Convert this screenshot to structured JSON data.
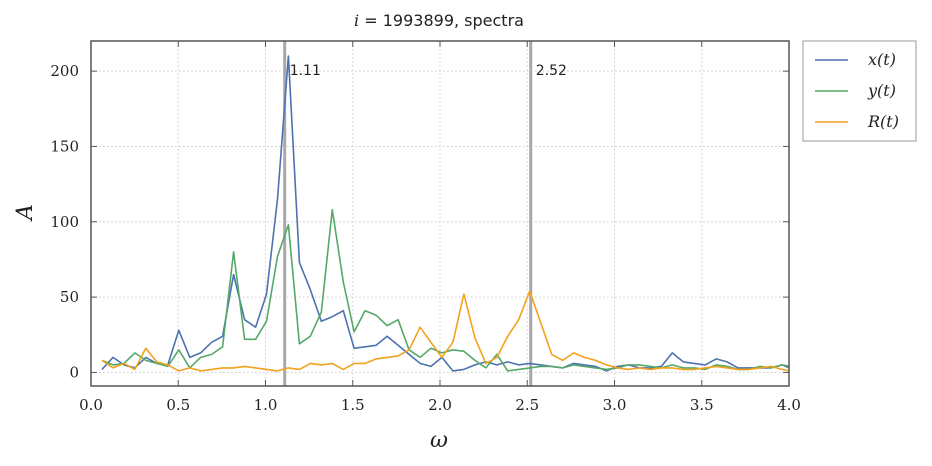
{
  "chart_data": {
    "type": "line",
    "title_var": "i",
    "title_rest": " = 1993899, spectra",
    "xlabel": "ω",
    "ylabel": "A",
    "xlim": [
      0.0,
      4.0
    ],
    "ylim": [
      -9,
      220
    ],
    "xticks": [
      0.0,
      0.5,
      1.0,
      1.5,
      2.0,
      2.5,
      3.0,
      3.5,
      4.0
    ],
    "xtick_labels": [
      "0.0",
      "0.5",
      "1.0",
      "1.5",
      "2.0",
      "2.5",
      "3.0",
      "3.5",
      "4.0"
    ],
    "yticks": [
      0,
      50,
      100,
      150,
      200
    ],
    "ytick_labels": [
      "0",
      "50",
      "100",
      "150",
      "200"
    ],
    "grid": true,
    "legend_position": "outside-top-right",
    "vlines": [
      {
        "x": 1.11,
        "label": "1.11"
      },
      {
        "x": 2.52,
        "label": "2.52"
      }
    ],
    "x": [
      0.063,
      0.126,
      0.189,
      0.251,
      0.314,
      0.377,
      0.44,
      0.503,
      0.566,
      0.628,
      0.691,
      0.754,
      0.817,
      0.88,
      0.943,
      1.006,
      1.069,
      1.131,
      1.194,
      1.257,
      1.32,
      1.383,
      1.446,
      1.508,
      1.571,
      1.634,
      1.697,
      1.76,
      1.823,
      1.886,
      1.948,
      2.011,
      2.074,
      2.137,
      2.2,
      2.263,
      2.326,
      2.388,
      2.451,
      2.514,
      2.577,
      2.64,
      2.703,
      2.766,
      2.828,
      2.891,
      2.954,
      3.017,
      3.08,
      3.143,
      3.206,
      3.268,
      3.331,
      3.394,
      3.457,
      3.52,
      3.583,
      3.646,
      3.708,
      3.771,
      3.834,
      3.897,
      3.96,
      4.0
    ],
    "series": [
      {
        "name": "x(t)",
        "color": "#4c72b0",
        "values": [
          2,
          10,
          5,
          3,
          10,
          6,
          5,
          28,
          10,
          13,
          20,
          24,
          65,
          35,
          30,
          52,
          115,
          210,
          73,
          55,
          34,
          37,
          41,
          16,
          17,
          18,
          24,
          18,
          12,
          6,
          4,
          10,
          1,
          2,
          5,
          7,
          5,
          7,
          5,
          6,
          5,
          4,
          3,
          6,
          5,
          4,
          1,
          4,
          5,
          3,
          3,
          4,
          13,
          7,
          6,
          5,
          9,
          7,
          3,
          3,
          3,
          3,
          5,
          4
        ]
      },
      {
        "name": "y(t)",
        "color": "#55a868",
        "values": [
          8,
          5,
          6,
          13,
          8,
          6,
          4,
          15,
          3,
          10,
          12,
          17,
          80,
          22,
          22,
          34,
          77,
          98,
          19,
          24,
          40,
          108,
          60,
          27,
          41,
          38,
          31,
          35,
          15,
          10,
          16,
          13,
          15,
          14,
          8,
          3,
          12,
          1,
          2,
          3,
          4,
          4,
          3,
          5,
          4,
          3,
          2,
          3,
          5,
          5,
          4,
          3,
          5,
          3,
          3,
          2,
          5,
          4,
          2,
          2,
          4,
          3,
          5,
          3
        ]
      },
      {
        "name": "R(t)",
        "color": "#f4a11d",
        "values": [
          8,
          3,
          6,
          2,
          16,
          7,
          5,
          1,
          3,
          1,
          2,
          3,
          3,
          4,
          3,
          2,
          1,
          3,
          2,
          6,
          5,
          6,
          2,
          6,
          6,
          9,
          10,
          11,
          15,
          30,
          20,
          10,
          20,
          52,
          23,
          6,
          10,
          24,
          35,
          54,
          33,
          12,
          8,
          13,
          10,
          8,
          5,
          3,
          2,
          3,
          2,
          3,
          3,
          2,
          2,
          3,
          4,
          3,
          2,
          2,
          3,
          4,
          2,
          1
        ]
      }
    ]
  }
}
